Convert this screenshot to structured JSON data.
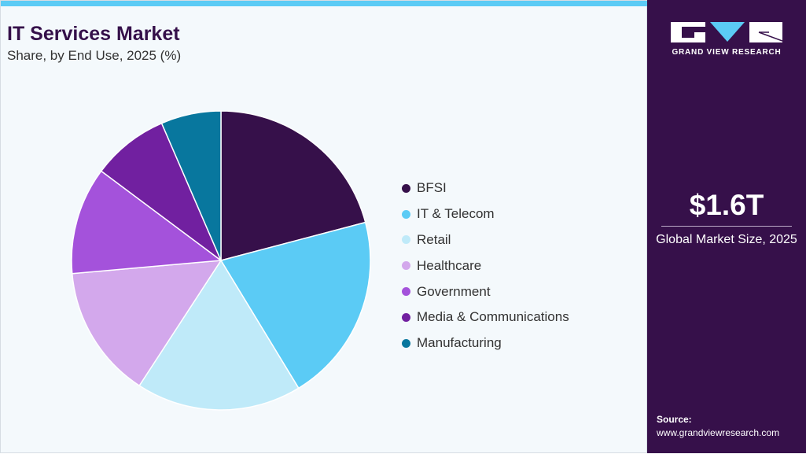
{
  "header": {
    "title": "IT Services Market",
    "subtitle": "Share, by End Use, 2025 (%)"
  },
  "sidebar": {
    "logo_text": "GRAND VIEW RESEARCH",
    "market_size": "$1.6T",
    "market_size_caption": "Global Market Size, 2025",
    "source_label": "Source:",
    "source_url": "www.grandviewresearch.com"
  },
  "chart_data": {
    "type": "pie",
    "title": "IT Services Market",
    "subtitle": "Share, by End Use, 2025 (%)",
    "legend_placement": "right",
    "categories": [
      "BFSI",
      "IT & Telecom",
      "Retail",
      "Healthcare",
      "Government",
      "Media & Communications",
      "Manufacturing"
    ],
    "values": [
      20.9,
      20.4,
      17.9,
      14.4,
      11.6,
      8.3,
      6.5
    ],
    "colors": [
      "#36104a",
      "#5bcbf5",
      "#bfeaf9",
      "#d3a8ec",
      "#a452db",
      "#7120a0",
      "#08779e"
    ]
  }
}
